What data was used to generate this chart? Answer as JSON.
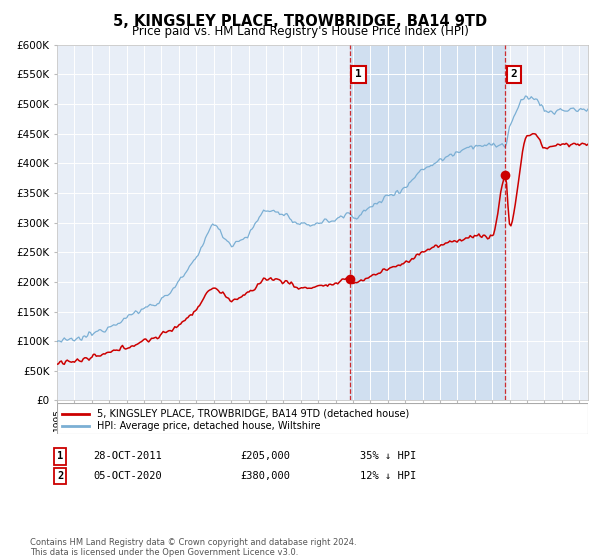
{
  "title": "5, KINGSLEY PLACE, TROWBRIDGE, BA14 9TD",
  "subtitle": "Price paid vs. HM Land Registry's House Price Index (HPI)",
  "hpi_label": "HPI: Average price, detached house, Wiltshire",
  "price_label": "5, KINGSLEY PLACE, TROWBRIDGE, BA14 9TD (detached house)",
  "hpi_color": "#7bafd4",
  "hpi_fill_color": "#c8d9ed",
  "price_color": "#cc0000",
  "plot_bg_color": "#e8eef7",
  "annotation1": {
    "num": "1",
    "date": "28-OCT-2011",
    "price": "£205,000",
    "pct": "35% ↓ HPI"
  },
  "annotation2": {
    "num": "2",
    "date": "05-OCT-2020",
    "price": "£380,000",
    "pct": "12% ↓ HPI"
  },
  "xmin": 1995,
  "xmax": 2025.5,
  "ymin": 0,
  "ymax": 600000,
  "yticks": [
    0,
    50000,
    100000,
    150000,
    200000,
    250000,
    300000,
    350000,
    400000,
    450000,
    500000,
    550000,
    600000
  ],
  "ytick_labels": [
    "£0",
    "£50K",
    "£100K",
    "£150K",
    "£200K",
    "£250K",
    "£300K",
    "£350K",
    "£400K",
    "£450K",
    "£500K",
    "£550K",
    "£600K"
  ],
  "purchase1_x": 2011.83,
  "purchase1_y": 205000,
  "purchase2_x": 2020.76,
  "purchase2_y": 380000,
  "vline1_x": 2011.83,
  "vline2_x": 2020.76,
  "footer": "Contains HM Land Registry data © Crown copyright and database right 2024.\nThis data is licensed under the Open Government Licence v3.0."
}
